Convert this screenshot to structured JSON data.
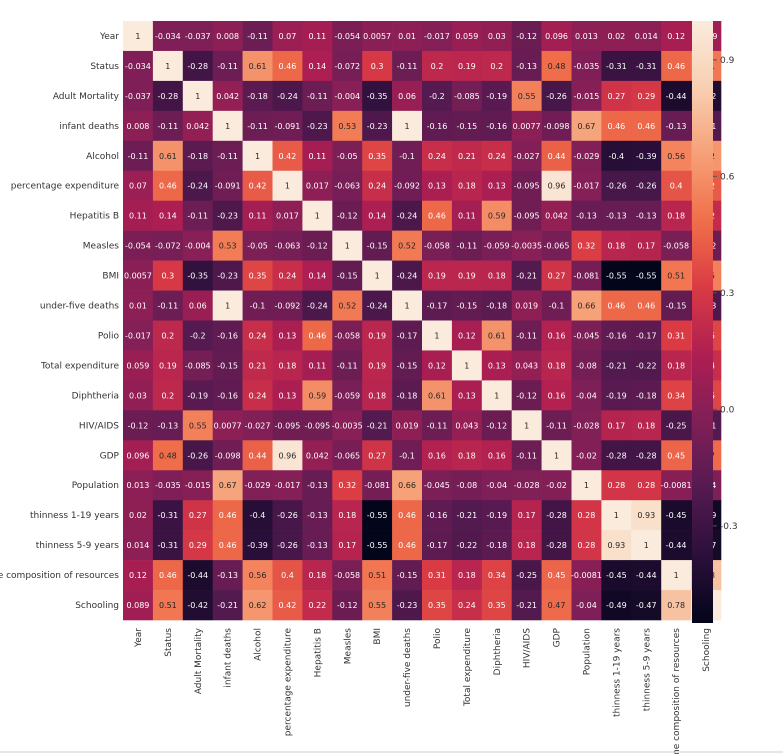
{
  "chart_data": {
    "type": "heatmap",
    "title": "",
    "labels": [
      "Year",
      "Status",
      "Adult Mortality",
      "infant deaths",
      "Alcohol",
      "percentage expenditure",
      "Hepatitis B",
      "Measles",
      "BMI",
      "under-five deaths",
      "Polio",
      "Total expenditure",
      "Diphtheria",
      "HIV/AIDS",
      "GDP",
      "Population",
      "thinness  1-19 years",
      "thinness 5-9 years",
      "Income composition of resources",
      "Schooling"
    ],
    "values": [
      [
        "1",
        "-0.034",
        "-0.037",
        "0.008",
        "-0.11",
        "0.07",
        "0.11",
        "-0.054",
        "0.0057",
        "0.01",
        "-0.017",
        "0.059",
        "0.03",
        "-0.12",
        "0.096",
        "0.013",
        "0.02",
        "0.014",
        "0.12",
        "0.089"
      ],
      [
        "-0.034",
        "1",
        "-0.28",
        "-0.11",
        "0.61",
        "0.46",
        "0.14",
        "-0.072",
        "0.3",
        "-0.11",
        "0.2",
        "0.19",
        "0.2",
        "-0.13",
        "0.48",
        "-0.035",
        "-0.31",
        "-0.31",
        "0.46",
        "0.51"
      ],
      [
        "-0.037",
        "-0.28",
        "1",
        "0.042",
        "-0.18",
        "-0.24",
        "-0.11",
        "-0.004",
        "-0.35",
        "0.06",
        "-0.2",
        "-0.085",
        "-0.19",
        "0.55",
        "-0.26",
        "-0.015",
        "0.27",
        "0.29",
        "-0.44",
        "-0.42"
      ],
      [
        "0.008",
        "-0.11",
        "0.042",
        "1",
        "-0.11",
        "-0.091",
        "-0.23",
        "0.53",
        "-0.23",
        "1",
        "-0.16",
        "-0.15",
        "-0.16",
        "0.0077",
        "-0.098",
        "0.67",
        "0.46",
        "0.46",
        "-0.13",
        "-0.21"
      ],
      [
        "-0.11",
        "0.61",
        "-0.18",
        "-0.11",
        "1",
        "0.42",
        "0.11",
        "-0.05",
        "0.35",
        "-0.1",
        "0.24",
        "0.21",
        "0.24",
        "-0.027",
        "0.44",
        "-0.029",
        "-0.4",
        "-0.39",
        "0.56",
        "0.62"
      ],
      [
        "0.07",
        "0.46",
        "-0.24",
        "-0.091",
        "0.42",
        "1",
        "0.017",
        "-0.063",
        "0.24",
        "-0.092",
        "0.13",
        "0.18",
        "0.13",
        "-0.095",
        "0.96",
        "-0.017",
        "-0.26",
        "-0.26",
        "0.4",
        "0.42"
      ],
      [
        "0.11",
        "0.14",
        "-0.11",
        "-0.23",
        "0.11",
        "0.017",
        "1",
        "-0.12",
        "0.14",
        "-0.24",
        "0.46",
        "0.11",
        "0.59",
        "-0.095",
        "0.042",
        "-0.13",
        "-0.13",
        "-0.13",
        "0.18",
        "0.22"
      ],
      [
        "-0.054",
        "-0.072",
        "-0.004",
        "0.53",
        "-0.05",
        "-0.063",
        "-0.12",
        "1",
        "-0.15",
        "0.52",
        "-0.058",
        "-0.11",
        "-0.059",
        "-0.0035",
        "-0.065",
        "0.32",
        "0.18",
        "0.17",
        "-0.058",
        "-0.12"
      ],
      [
        "0.0057",
        "0.3",
        "-0.35",
        "-0.23",
        "0.35",
        "0.24",
        "0.14",
        "-0.15",
        "1",
        "-0.24",
        "0.19",
        "0.19",
        "0.18",
        "-0.21",
        "0.27",
        "-0.081",
        "-0.55",
        "-0.55",
        "0.51",
        "0.55"
      ],
      [
        "0.01",
        "-0.11",
        "0.06",
        "1",
        "-0.1",
        "-0.092",
        "-0.24",
        "0.52",
        "-0.24",
        "1",
        "-0.17",
        "-0.15",
        "-0.18",
        "0.019",
        "-0.1",
        "0.66",
        "0.46",
        "0.46",
        "-0.15",
        "-0.23"
      ],
      [
        "-0.017",
        "0.2",
        "-0.2",
        "-0.16",
        "0.24",
        "0.13",
        "0.46",
        "-0.058",
        "0.19",
        "-0.17",
        "1",
        "0.12",
        "0.61",
        "-0.11",
        "0.16",
        "-0.045",
        "-0.16",
        "-0.17",
        "0.31",
        "0.35"
      ],
      [
        "0.059",
        "0.19",
        "-0.085",
        "-0.15",
        "0.21",
        "0.18",
        "0.11",
        "-0.11",
        "0.19",
        "-0.15",
        "0.12",
        "1",
        "0.13",
        "0.043",
        "0.18",
        "-0.08",
        "-0.21",
        "-0.22",
        "0.18",
        "0.24"
      ],
      [
        "0.03",
        "0.2",
        "-0.19",
        "-0.16",
        "0.24",
        "0.13",
        "0.59",
        "-0.059",
        "0.18",
        "-0.18",
        "0.61",
        "0.13",
        "1",
        "-0.12",
        "0.16",
        "-0.04",
        "-0.19",
        "-0.18",
        "0.34",
        "0.35"
      ],
      [
        "-0.12",
        "-0.13",
        "0.55",
        "0.0077",
        "-0.027",
        "-0.095",
        "-0.095",
        "-0.0035",
        "-0.21",
        "0.019",
        "-0.11",
        "0.043",
        "-0.12",
        "1",
        "-0.11",
        "-0.028",
        "0.17",
        "0.18",
        "-0.25",
        "-0.21"
      ],
      [
        "0.096",
        "0.48",
        "-0.26",
        "-0.098",
        "0.44",
        "0.96",
        "0.042",
        "-0.065",
        "0.27",
        "-0.1",
        "0.16",
        "0.18",
        "0.16",
        "-0.11",
        "1",
        "-0.02",
        "-0.28",
        "-0.28",
        "0.45",
        "0.47"
      ],
      [
        "0.013",
        "-0.035",
        "-0.015",
        "0.67",
        "-0.029",
        "-0.017",
        "-0.13",
        "0.32",
        "-0.081",
        "0.66",
        "-0.045",
        "-0.08",
        "-0.04",
        "-0.028",
        "-0.02",
        "1",
        "0.28",
        "0.28",
        "-0.0081",
        "-0.04"
      ],
      [
        "0.02",
        "-0.31",
        "0.27",
        "0.46",
        "-0.4",
        "-0.26",
        "-0.13",
        "0.18",
        "-0.55",
        "0.46",
        "-0.16",
        "-0.21",
        "-0.19",
        "0.17",
        "-0.28",
        "0.28",
        "1",
        "0.93",
        "-0.45",
        "-0.49"
      ],
      [
        "0.014",
        "-0.31",
        "0.29",
        "0.46",
        "-0.39",
        "-0.26",
        "-0.13",
        "0.17",
        "-0.55",
        "0.46",
        "-0.17",
        "-0.22",
        "-0.18",
        "0.18",
        "-0.28",
        "0.28",
        "0.93",
        "1",
        "-0.44",
        "-0.47"
      ],
      [
        "0.12",
        "0.46",
        "-0.44",
        "-0.13",
        "0.56",
        "0.4",
        "0.18",
        "-0.058",
        "0.51",
        "-0.15",
        "0.31",
        "0.18",
        "0.34",
        "-0.25",
        "0.45",
        "-0.0081",
        "-0.45",
        "-0.44",
        "1",
        "0.78"
      ],
      [
        "0.089",
        "0.51",
        "-0.42",
        "-0.21",
        "0.62",
        "0.42",
        "0.22",
        "-0.12",
        "0.55",
        "-0.23",
        "0.35",
        "0.24",
        "0.35",
        "-0.21",
        "0.47",
        "-0.04",
        "-0.49",
        "-0.47",
        "0.78",
        "1"
      ]
    ],
    "color_range": [
      -0.55,
      1.0
    ],
    "colorbar_ticks": [
      "0.9",
      "0.6",
      "0.3",
      "0.0",
      "-0.3"
    ],
    "colorbar_tick_values": [
      0.9,
      0.6,
      0.3,
      0.0,
      -0.3
    ],
    "colormap_stops": [
      "#03051a",
      "#2b0f3a",
      "#541a50",
      "#801f57",
      "#ad1e52",
      "#d93a44",
      "#f06e4a",
      "#f6a077",
      "#f8cfb1",
      "#faebdd"
    ],
    "grid": false
  }
}
